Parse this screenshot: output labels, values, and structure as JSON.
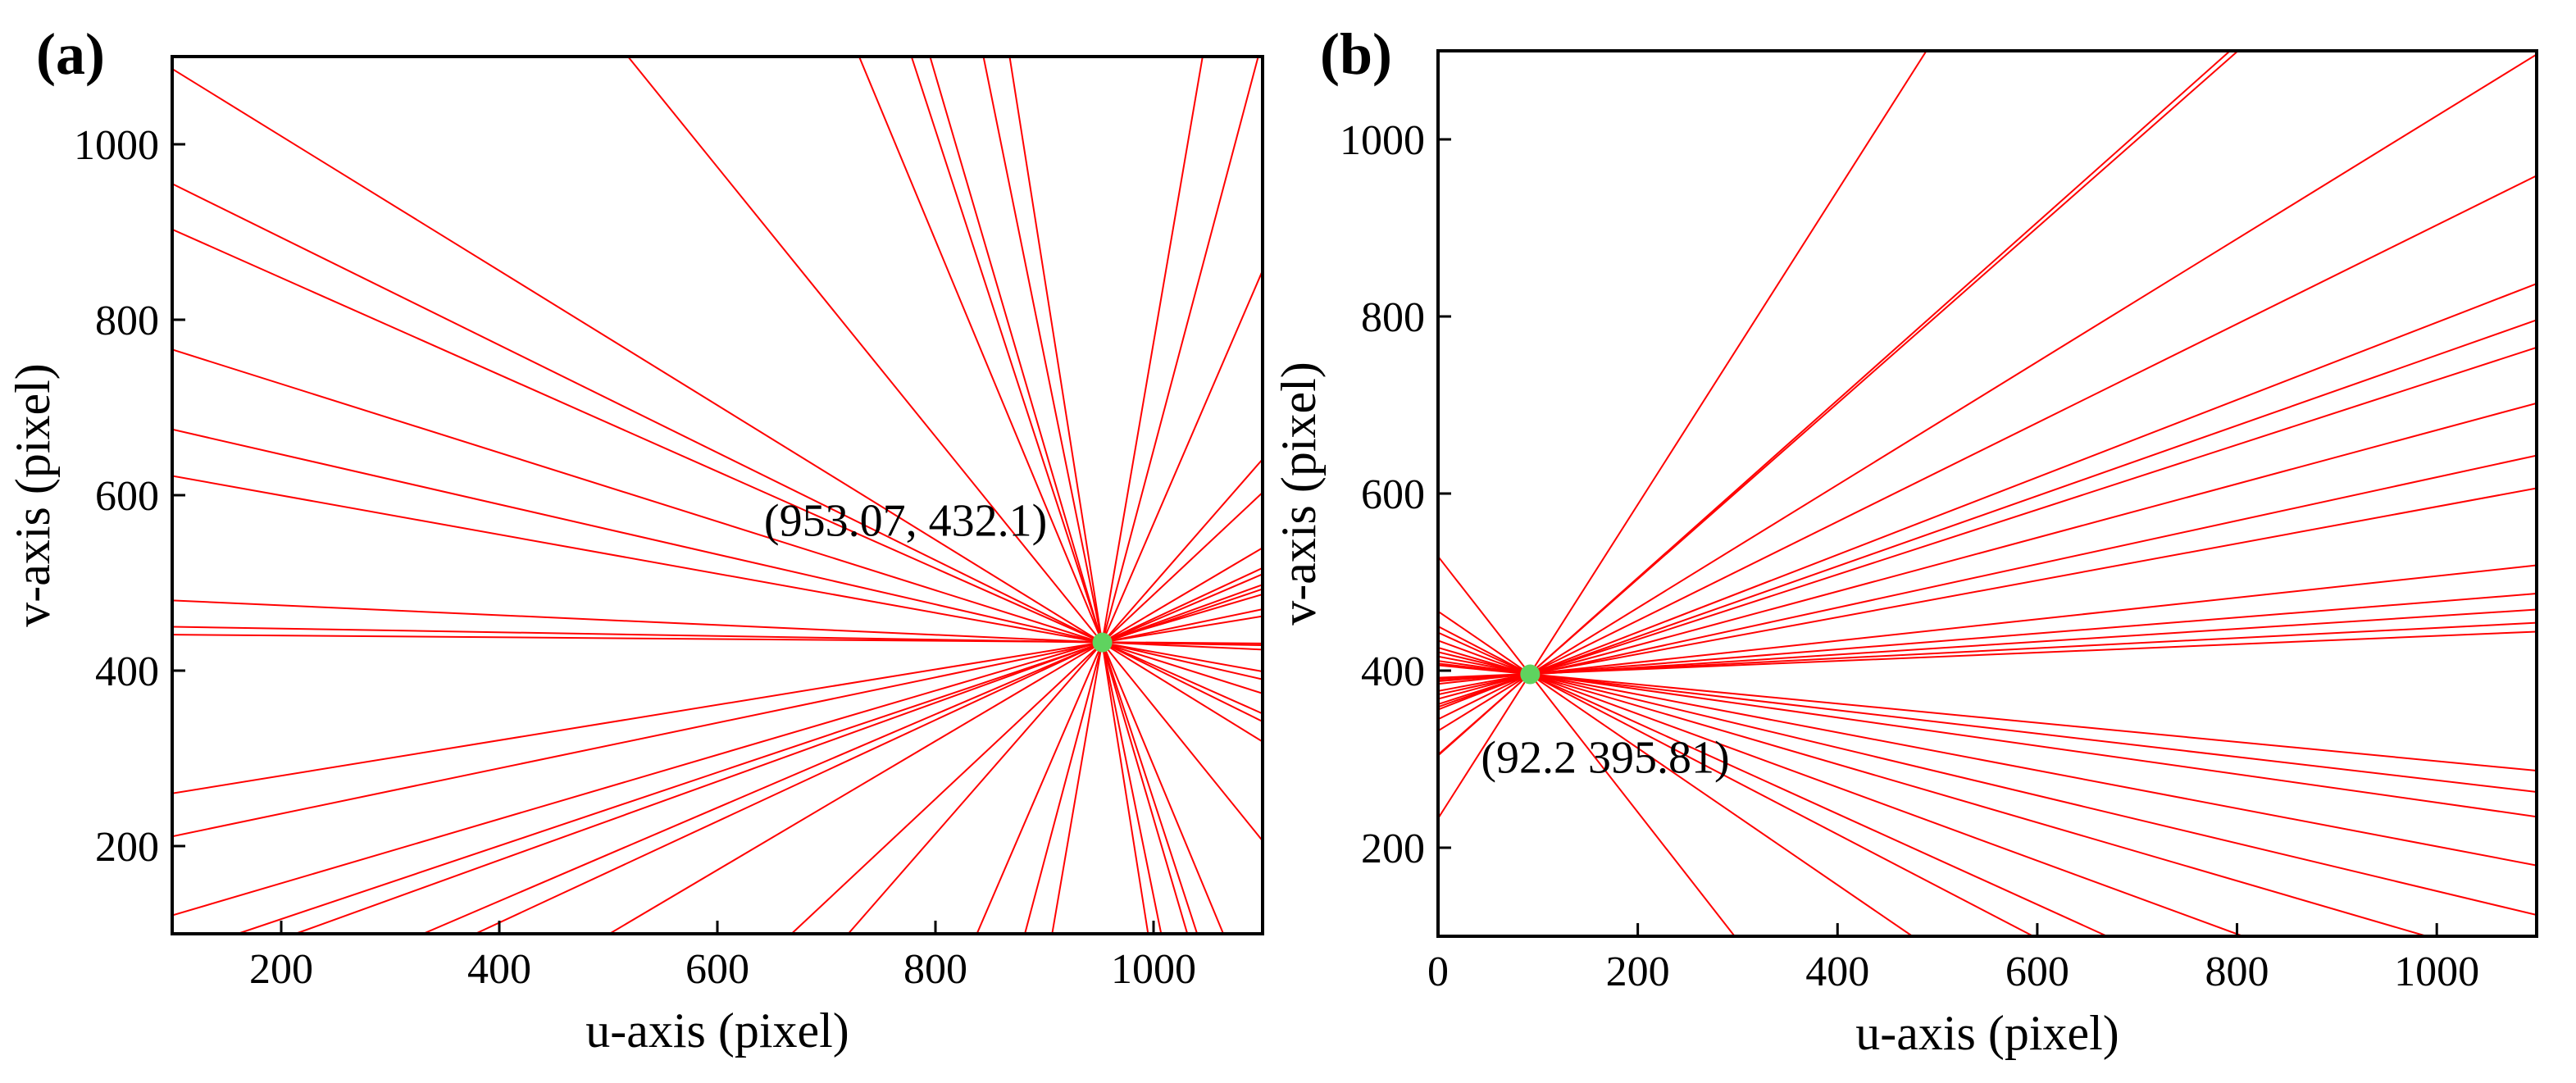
{
  "chart_data": [
    {
      "type": "line",
      "panel_label": "(a)",
      "xlabel": "u-axis (pixel)",
      "ylabel": "v-axis (pixel)",
      "xlim": [
        100,
        1100
      ],
      "ylim": [
        100,
        1100
      ],
      "xticks": [
        200,
        400,
        600,
        800,
        1000
      ],
      "yticks": [
        200,
        400,
        600,
        800,
        1000
      ],
      "line_color": "#ff0000",
      "series": [
        {
          "x": [
            100,
            1100
          ],
          "values": [
            1086,
            319
          ]
        },
        {
          "x": [
            100,
            1100
          ],
          "values": [
            955,
            342
          ]
        },
        {
          "x": [
            100,
            1100
          ],
          "values": [
            903,
            351
          ]
        },
        {
          "x": [
            100,
            1100
          ],
          "values": [
            766,
            374
          ]
        },
        {
          "x": [
            100,
            1100
          ],
          "values": [
            675,
            390
          ]
        },
        {
          "x": [
            100,
            1100
          ],
          "values": [
            622,
            399
          ]
        },
        {
          "x": [
            100,
            1100
          ],
          "values": [
            480,
            424
          ]
        },
        {
          "x": [
            100,
            1100
          ],
          "values": [
            450,
            429
          ]
        },
        {
          "x": [
            100,
            1100
          ],
          "values": [
            441,
            431
          ]
        },
        {
          "x": [
            100,
            1100
          ],
          "values": [
            260,
            462
          ]
        },
        {
          "x": [
            100,
            1100
          ],
          "values": [
            211,
            470
          ]
        },
        {
          "x": [
            100,
            1100
          ],
          "values": [
            121,
            487
          ]
        },
        {
          "x": [
            160,
            1100
          ],
          "values": [
            100,
            493
          ]
        },
        {
          "x": [
            213,
            1100
          ],
          "values": [
            100,
            498
          ]
        },
        {
          "x": [
            330,
            1100
          ],
          "values": [
            100,
            510
          ]
        },
        {
          "x": [
            378,
            1100
          ],
          "values": [
            100,
            517
          ]
        },
        {
          "x": [
            501,
            1100
          ],
          "values": [
            100,
            540
          ]
        },
        {
          "x": [
            668,
            1100
          ],
          "values": [
            100,
            603
          ]
        },
        {
          "x": [
            720,
            1100
          ],
          "values": [
            100,
            641
          ]
        },
        {
          "x": [
            838,
            1100
          ],
          "values": [
            100,
            856
          ]
        },
        {
          "x": [
            882,
            1096
          ],
          "values": [
            100,
            1100
          ]
        },
        {
          "x": [
            907,
            1045
          ],
          "values": [
            100,
            1100
          ]
        },
        {
          "x": [
            995,
            868
          ],
          "values": [
            100,
            1100
          ]
        },
        {
          "x": [
            1040,
            778
          ],
          "values": [
            100,
            1100
          ]
        },
        {
          "x": [
            1064,
            730
          ],
          "values": [
            100,
            1100
          ]
        },
        {
          "x": [
            518,
            1100
          ],
          "values": [
            1100,
            206
          ]
        },
        {
          "x": [
            795,
            1031
          ],
          "values": [
            1100,
            100
          ]
        },
        {
          "x": [
            844,
            1007
          ],
          "values": [
            1100,
            100
          ]
        }
      ],
      "points": {
        "color": "#5fd35f",
        "x": [
          953.07
        ],
        "values": [
          432.1
        ],
        "labels": [
          "(953.07, 432.1)"
        ]
      }
    },
    {
      "type": "line",
      "panel_label": "(b)",
      "xlabel": "u-axis (pixel)",
      "ylabel": "v-axis (pixel)",
      "xlim": [
        0,
        1100
      ],
      "ylim": [
        100,
        1100
      ],
      "xticks": [
        0,
        200,
        400,
        600,
        800,
        1000
      ],
      "yticks": [
        200,
        400,
        600,
        800,
        1000
      ],
      "line_color": "#ff0000",
      "series": [
        {
          "x": [
            0,
            489
          ],
          "values": [
            233,
            1100
          ]
        },
        {
          "x": [
            0,
            793
          ],
          "values": [
            304,
            1100
          ]
        },
        {
          "x": [
            0,
            801
          ],
          "values": [
            305,
            1100
          ]
        },
        {
          "x": [
            0,
            1100
          ],
          "values": [
            332,
            1096
          ]
        },
        {
          "x": [
            0,
            1100
          ],
          "values": [
            345,
            959
          ]
        },
        {
          "x": [
            0,
            1100
          ],
          "values": [
            356,
            837
          ]
        },
        {
          "x": [
            0,
            1100
          ],
          "values": [
            359,
            796
          ]
        },
        {
          "x": [
            0,
            1100
          ],
          "values": [
            362,
            765
          ]
        },
        {
          "x": [
            0,
            1100
          ],
          "values": [
            368,
            702
          ]
        },
        {
          "x": [
            0,
            1100
          ],
          "values": [
            373,
            643
          ]
        },
        {
          "x": [
            0,
            1100
          ],
          "values": [
            377,
            606
          ]
        },
        {
          "x": [
            0,
            1100
          ],
          "values": [
            385,
            519
          ]
        },
        {
          "x": [
            0,
            1100
          ],
          "values": [
            388,
            487
          ]
        },
        {
          "x": [
            0,
            1100
          ],
          "values": [
            389,
            469
          ]
        },
        {
          "x": [
            0,
            1100
          ],
          "values": [
            391,
            454
          ]
        },
        {
          "x": [
            0,
            1100
          ],
          "values": [
            392,
            444
          ]
        },
        {
          "x": [
            0,
            1100
          ],
          "values": [
            406,
            287
          ]
        },
        {
          "x": [
            0,
            1100
          ],
          "values": [
            408,
            263
          ]
        },
        {
          "x": [
            0,
            1100
          ],
          "values": [
            411,
            235
          ]
        },
        {
          "x": [
            0,
            1100
          ],
          "values": [
            416,
            180
          ]
        },
        {
          "x": [
            0,
            1100
          ],
          "values": [
            421,
            124
          ]
        },
        {
          "x": [
            0,
            297
          ],
          "values": [
            529,
            100
          ]
        },
        {
          "x": [
            0,
            475
          ],
          "values": [
            467,
            100
          ]
        },
        {
          "x": [
            0,
            596
          ],
          "values": [
            450,
            100
          ]
        },
        {
          "x": [
            0,
            670
          ],
          "values": [
            443,
            100
          ]
        },
        {
          "x": [
            0,
            806
          ],
          "values": [
            434,
            100
          ]
        },
        {
          "x": [
            0,
            990
          ],
          "values": [
            426,
            100
          ]
        }
      ],
      "points": {
        "color": "#5fd35f",
        "x": [
          92.2
        ],
        "values": [
          395.81
        ],
        "labels": [
          "(92.2 395.81)"
        ]
      }
    }
  ]
}
